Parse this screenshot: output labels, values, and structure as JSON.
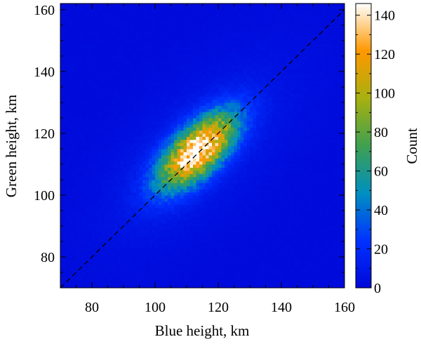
{
  "chart_data": {
    "type": "heatmap",
    "xlabel": "Blue height, km",
    "ylabel": "Green height, km",
    "xlim": [
      70,
      160
    ],
    "ylim": [
      70,
      162
    ],
    "xticks": [
      80,
      100,
      120,
      140,
      160
    ],
    "yticks": [
      80,
      100,
      120,
      140,
      160
    ],
    "bin_size_km": 1,
    "background_count": 2,
    "distribution": {
      "center": [
        113.5,
        114.5
      ],
      "major_axis_direction_deg": 45,
      "sigma_major_km": 10.5,
      "sigma_minor_km": 4.8,
      "peak_count": 145,
      "halo_amplitude": 10,
      "halo_scale": 2.4
    },
    "reference_line": {
      "from": [
        70,
        70
      ],
      "to": [
        162,
        162
      ],
      "style": "dashed",
      "color": "#000000"
    },
    "colorbar": {
      "label": "Count",
      "min": 0,
      "max": 146,
      "ticks": [
        0,
        20,
        40,
        60,
        80,
        100,
        120,
        140
      ],
      "colormap": [
        "#0008d8",
        "#0032ff",
        "#0090c0",
        "#3fa050",
        "#a8b010",
        "#ff9800",
        "#ffffff"
      ]
    }
  }
}
